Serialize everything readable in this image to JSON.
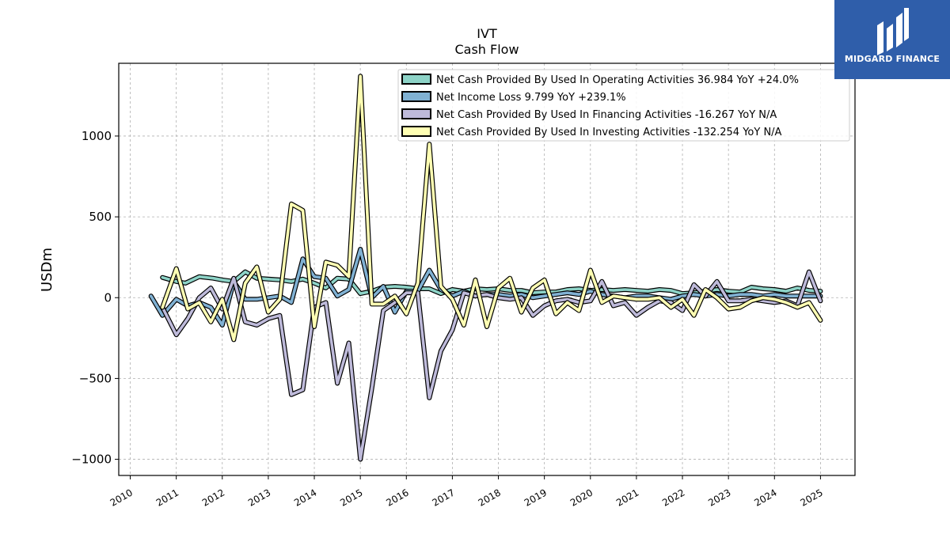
{
  "chart_data": {
    "type": "line",
    "title": "IVT",
    "subtitle": "Cash Flow",
    "ylabel": "USDm",
    "xlabel": "",
    "ylim": [
      -1100,
      1450
    ],
    "xlim": [
      2009.75,
      2025.75
    ],
    "yticks": [
      -1000,
      -500,
      0,
      500,
      1000
    ],
    "ytick_labels": [
      "−1000",
      "−500",
      "0",
      "500",
      "1000"
    ],
    "xticks": [
      2010,
      2011,
      2012,
      2013,
      2014,
      2015,
      2016,
      2017,
      2018,
      2019,
      2020,
      2021,
      2022,
      2023,
      2024,
      2025
    ],
    "xtick_labels": [
      "2010",
      "2011",
      "2012",
      "2013",
      "2014",
      "2015",
      "2016",
      "2017",
      "2018",
      "2019",
      "2020",
      "2021",
      "2022",
      "2023",
      "2024",
      "2025"
    ],
    "grid": true,
    "legend_position": "top-right",
    "series": [
      {
        "name": "Net Cash Provided By Used In Operating Activities",
        "legend_label": "Net Cash Provided By Used In Operating Activities  36.984 YoY +24.0%",
        "color": "#8dd3c7",
        "points": [
          [
            2010.7,
            125
          ],
          [
            2011.0,
            100
          ],
          [
            2011.2,
            90
          ],
          [
            2011.5,
            130
          ],
          [
            2011.8,
            120
          ],
          [
            2012.0,
            110
          ],
          [
            2012.25,
            100
          ],
          [
            2012.5,
            160
          ],
          [
            2012.75,
            120
          ],
          [
            2013.0,
            115
          ],
          [
            2013.25,
            110
          ],
          [
            2013.5,
            100
          ],
          [
            2013.75,
            115
          ],
          [
            2014.0,
            90
          ],
          [
            2014.25,
            60
          ],
          [
            2014.5,
            120
          ],
          [
            2014.75,
            115
          ],
          [
            2015.0,
            25
          ],
          [
            2015.25,
            40
          ],
          [
            2015.5,
            65
          ],
          [
            2015.75,
            70
          ],
          [
            2016.0,
            65
          ],
          [
            2016.25,
            55
          ],
          [
            2016.5,
            55
          ],
          [
            2016.75,
            25
          ],
          [
            2017.0,
            50
          ],
          [
            2017.25,
            40
          ],
          [
            2017.5,
            55
          ],
          [
            2017.75,
            50
          ],
          [
            2018.0,
            55
          ],
          [
            2018.25,
            45
          ],
          [
            2018.5,
            45
          ],
          [
            2018.75,
            30
          ],
          [
            2019.0,
            35
          ],
          [
            2019.25,
            35
          ],
          [
            2019.5,
            50
          ],
          [
            2019.75,
            55
          ],
          [
            2020.0,
            45
          ],
          [
            2020.25,
            50
          ],
          [
            2020.5,
            45
          ],
          [
            2020.75,
            50
          ],
          [
            2021.0,
            45
          ],
          [
            2021.25,
            40
          ],
          [
            2021.5,
            50
          ],
          [
            2021.75,
            45
          ],
          [
            2022.0,
            25
          ],
          [
            2022.25,
            30
          ],
          [
            2022.5,
            40
          ],
          [
            2022.75,
            50
          ],
          [
            2023.0,
            40
          ],
          [
            2023.25,
            35
          ],
          [
            2023.5,
            65
          ],
          [
            2023.75,
            55
          ],
          [
            2024.0,
            50
          ],
          [
            2024.25,
            40
          ],
          [
            2024.5,
            60
          ],
          [
            2024.75,
            45
          ],
          [
            2025.0,
            40
          ]
        ]
      },
      {
        "name": "Net Income Loss",
        "legend_label": "Net Income Loss  9.799 YoY +239.1%",
        "color": "#80b1d3",
        "points": [
          [
            2010.45,
            10
          ],
          [
            2010.7,
            -110
          ],
          [
            2011.0,
            -10
          ],
          [
            2011.25,
            -50
          ],
          [
            2011.5,
            -30
          ],
          [
            2011.75,
            -60
          ],
          [
            2012.0,
            -170
          ],
          [
            2012.25,
            100
          ],
          [
            2012.5,
            -10
          ],
          [
            2012.75,
            -10
          ],
          [
            2013.0,
            0
          ],
          [
            2013.25,
            10
          ],
          [
            2013.5,
            -30
          ],
          [
            2013.75,
            240
          ],
          [
            2014.0,
            130
          ],
          [
            2014.25,
            120
          ],
          [
            2014.5,
            10
          ],
          [
            2014.75,
            50
          ],
          [
            2015.0,
            300
          ],
          [
            2015.25,
            0
          ],
          [
            2015.5,
            70
          ],
          [
            2015.75,
            -90
          ],
          [
            2016.0,
            40
          ],
          [
            2016.25,
            40
          ],
          [
            2016.5,
            170
          ],
          [
            2016.75,
            50
          ],
          [
            2017.0,
            10
          ],
          [
            2017.25,
            40
          ],
          [
            2017.5,
            10
          ],
          [
            2017.75,
            20
          ],
          [
            2018.0,
            20
          ],
          [
            2018.25,
            10
          ],
          [
            2018.5,
            20
          ],
          [
            2018.75,
            0
          ],
          [
            2019.0,
            10
          ],
          [
            2019.25,
            20
          ],
          [
            2019.5,
            30
          ],
          [
            2019.75,
            20
          ],
          [
            2020.0,
            40
          ],
          [
            2020.25,
            20
          ],
          [
            2020.5,
            10
          ],
          [
            2020.75,
            0
          ],
          [
            2021.0,
            10
          ],
          [
            2021.25,
            10
          ],
          [
            2021.5,
            0
          ],
          [
            2021.75,
            -10
          ],
          [
            2022.0,
            10
          ],
          [
            2022.25,
            20
          ],
          [
            2022.5,
            10
          ],
          [
            2022.75,
            20
          ],
          [
            2023.0,
            10
          ],
          [
            2023.25,
            20
          ],
          [
            2023.5,
            20
          ],
          [
            2023.75,
            10
          ],
          [
            2024.0,
            20
          ],
          [
            2024.25,
            10
          ],
          [
            2024.5,
            10
          ],
          [
            2024.75,
            10
          ],
          [
            2025.0,
            10
          ]
        ]
      },
      {
        "name": "Net Cash Provided By Used In Financing Activities",
        "legend_label": "Net Cash Provided By Used In Financing Activities  -16.267 YoY N/A",
        "color": "#bebada",
        "points": [
          [
            2010.7,
            -60
          ],
          [
            2011.0,
            -230
          ],
          [
            2011.25,
            -130
          ],
          [
            2011.5,
            0
          ],
          [
            2011.75,
            60
          ],
          [
            2012.0,
            -70
          ],
          [
            2012.25,
            120
          ],
          [
            2012.5,
            -150
          ],
          [
            2012.75,
            -170
          ],
          [
            2013.0,
            -130
          ],
          [
            2013.25,
            -110
          ],
          [
            2013.5,
            -600
          ],
          [
            2013.75,
            -570
          ],
          [
            2014.0,
            -60
          ],
          [
            2014.25,
            -30
          ],
          [
            2014.5,
            -530
          ],
          [
            2014.75,
            -280
          ],
          [
            2015.0,
            -1000
          ],
          [
            2015.25,
            -560
          ],
          [
            2015.5,
            -80
          ],
          [
            2015.75,
            -30
          ],
          [
            2016.0,
            30
          ],
          [
            2016.25,
            30
          ],
          [
            2016.5,
            -620
          ],
          [
            2016.75,
            -330
          ],
          [
            2017.0,
            -200
          ],
          [
            2017.25,
            30
          ],
          [
            2017.5,
            10
          ],
          [
            2017.75,
            20
          ],
          [
            2018.0,
            0
          ],
          [
            2018.25,
            -10
          ],
          [
            2018.5,
            0
          ],
          [
            2018.75,
            -110
          ],
          [
            2019.0,
            -50
          ],
          [
            2019.25,
            -20
          ],
          [
            2019.5,
            -10
          ],
          [
            2019.75,
            -30
          ],
          [
            2020.0,
            -20
          ],
          [
            2020.25,
            100
          ],
          [
            2020.5,
            -50
          ],
          [
            2020.75,
            -30
          ],
          [
            2021.0,
            -110
          ],
          [
            2021.25,
            -60
          ],
          [
            2021.5,
            -20
          ],
          [
            2021.75,
            -30
          ],
          [
            2022.0,
            -80
          ],
          [
            2022.25,
            80
          ],
          [
            2022.5,
            10
          ],
          [
            2022.75,
            100
          ],
          [
            2023.0,
            -20
          ],
          [
            2023.25,
            -20
          ],
          [
            2023.5,
            -10
          ],
          [
            2023.75,
            -20
          ],
          [
            2024.0,
            -30
          ],
          [
            2024.25,
            -20
          ],
          [
            2024.5,
            -50
          ],
          [
            2024.75,
            160
          ],
          [
            2025.0,
            -20
          ]
        ]
      },
      {
        "name": "Net Cash Provided By Used In Investing Activities",
        "legend_label": "Net Cash Provided By Used In Investing Activities  -132.254 YoY N/A",
        "color": "#ffffb3",
        "points": [
          [
            2010.7,
            -60
          ],
          [
            2011.0,
            180
          ],
          [
            2011.25,
            -70
          ],
          [
            2011.5,
            -30
          ],
          [
            2011.75,
            -150
          ],
          [
            2012.0,
            -10
          ],
          [
            2012.25,
            -260
          ],
          [
            2012.5,
            90
          ],
          [
            2012.75,
            190
          ],
          [
            2013.0,
            -90
          ],
          [
            2013.25,
            -10
          ],
          [
            2013.5,
            580
          ],
          [
            2013.75,
            540
          ],
          [
            2014.0,
            -180
          ],
          [
            2014.25,
            220
          ],
          [
            2014.5,
            200
          ],
          [
            2014.75,
            130
          ],
          [
            2015.0,
            1370
          ],
          [
            2015.25,
            -40
          ],
          [
            2015.5,
            -40
          ],
          [
            2015.75,
            10
          ],
          [
            2016.0,
            -100
          ],
          [
            2016.25,
            90
          ],
          [
            2016.5,
            950
          ],
          [
            2016.75,
            70
          ],
          [
            2017.0,
            -10
          ],
          [
            2017.25,
            -170
          ],
          [
            2017.5,
            110
          ],
          [
            2017.75,
            -180
          ],
          [
            2018.0,
            60
          ],
          [
            2018.25,
            120
          ],
          [
            2018.5,
            -90
          ],
          [
            2018.75,
            60
          ],
          [
            2019.0,
            110
          ],
          [
            2019.25,
            -100
          ],
          [
            2019.5,
            -30
          ],
          [
            2019.75,
            -80
          ],
          [
            2020.0,
            170
          ],
          [
            2020.25,
            -30
          ],
          [
            2020.5,
            10
          ],
          [
            2020.75,
            0
          ],
          [
            2021.0,
            -10
          ],
          [
            2021.25,
            -10
          ],
          [
            2021.5,
            0
          ],
          [
            2021.75,
            -60
          ],
          [
            2022.0,
            -10
          ],
          [
            2022.25,
            -110
          ],
          [
            2022.5,
            50
          ],
          [
            2022.75,
            0
          ],
          [
            2023.0,
            -70
          ],
          [
            2023.25,
            -60
          ],
          [
            2023.5,
            -20
          ],
          [
            2023.75,
            0
          ],
          [
            2024.0,
            -10
          ],
          [
            2024.25,
            -30
          ],
          [
            2024.5,
            -60
          ],
          [
            2024.75,
            -30
          ],
          [
            2025.0,
            -140
          ]
        ]
      }
    ]
  },
  "logo": {
    "text": "MIDGARD FINANCE",
    "background": "#2f5eaa"
  }
}
